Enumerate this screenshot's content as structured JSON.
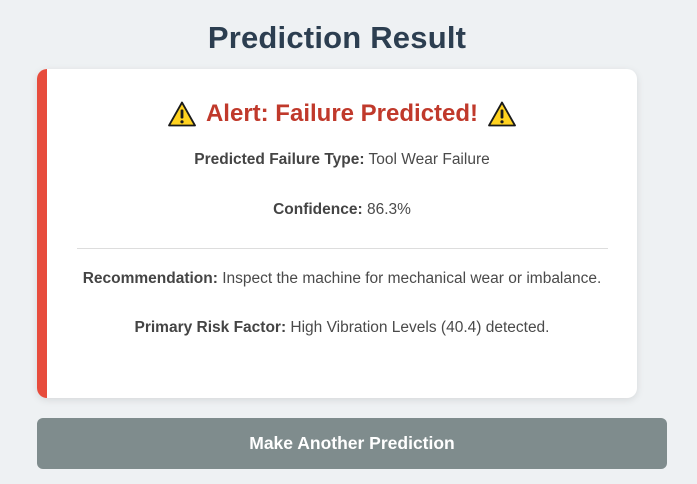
{
  "page": {
    "title": "Prediction Result"
  },
  "alert": {
    "icon": "warning-icon",
    "heading": "Alert: Failure Predicted!"
  },
  "details": {
    "failure_type_label": "Predicted Failure Type:",
    "failure_type_value": "Tool Wear Failure",
    "confidence_label": "Confidence:",
    "confidence_value": "86.3%",
    "recommendation_label": "Recommendation:",
    "recommendation_value": "Inspect the machine for mechanical wear or imbalance.",
    "risk_factor_label": "Primary Risk Factor:",
    "risk_factor_value": "High Vibration Levels (40.4) detected."
  },
  "actions": {
    "another_prediction_label": "Make Another Prediction"
  },
  "colors": {
    "accent": "#e74c3c",
    "alert_text": "#c0392b",
    "button": "#7f8c8d",
    "title": "#2c3e50"
  }
}
